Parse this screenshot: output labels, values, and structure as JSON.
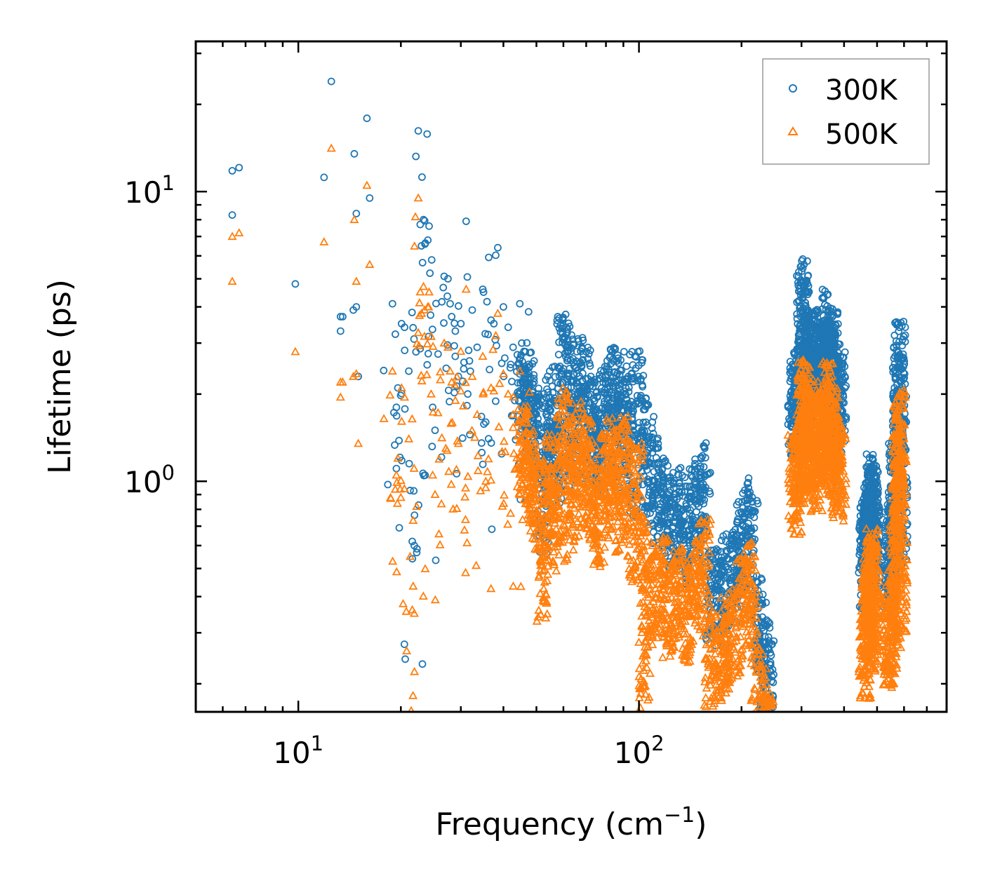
{
  "chart_data": {
    "type": "scatter",
    "title": "",
    "xlabel": "Frequency (cm",
    "xlabel_sup": "−1",
    "xlabel_close": ")",
    "ylabel": "Lifetime (ps)",
    "xscale": "log",
    "yscale": "log",
    "xlim": [
      5,
      800
    ],
    "ylim": [
      0.16,
      33
    ],
    "x_ticks": [
      {
        "value": 10,
        "base": "10",
        "exp": "1"
      },
      {
        "value": 100,
        "base": "10",
        "exp": "2"
      }
    ],
    "y_ticks": [
      {
        "value": 1,
        "base": "10",
        "exp": "0"
      },
      {
        "value": 10,
        "base": "10",
        "exp": "1"
      }
    ],
    "legend_position": "top-right",
    "colors": {
      "s300": "#1f77b4",
      "s500": "#ff7f0e",
      "axis": "#000000",
      "legend_border": "#999999"
    },
    "series": [
      {
        "name": "300K",
        "marker": "circle",
        "color": "#1f77b4",
        "points": [
          [
            6.4,
            11.8
          ],
          [
            6.7,
            12.1
          ],
          [
            6.4,
            8.3
          ],
          [
            9.8,
            4.8
          ],
          [
            11.9,
            11.2
          ],
          [
            12.5,
            24.0
          ],
          [
            13.3,
            3.7
          ],
          [
            13.5,
            3.7
          ],
          [
            13.3,
            3.3
          ],
          [
            14.5,
            3.9
          ],
          [
            14.8,
            4.0
          ],
          [
            14.6,
            13.5
          ],
          [
            14.8,
            8.4
          ],
          [
            15.0,
            2.3
          ],
          [
            15.9,
            17.9
          ],
          [
            16.2,
            9.5
          ],
          [
            18.9,
            4.1
          ],
          [
            19.4,
            1.8
          ],
          [
            19.6,
            2.1
          ],
          [
            20.1,
            3.5
          ],
          [
            20.5,
            3.4
          ],
          [
            21.1,
            2.4
          ],
          [
            21.3,
            0.93
          ],
          [
            21.6,
            0.62
          ],
          [
            21.9,
            0.6
          ],
          [
            22.5,
            16.2
          ],
          [
            22.8,
            7.7
          ],
          [
            23.0,
            6.5
          ],
          [
            23.3,
            8.0
          ],
          [
            24.0,
            6.8
          ],
          [
            24.2,
            7.6
          ],
          [
            24.8,
            1.8
          ],
          [
            25.2,
            1.5
          ],
          [
            26.8,
            5.1
          ],
          [
            27.5,
            5.0
          ],
          [
            27.9,
            4.1
          ],
          [
            28.2,
            3.7
          ],
          [
            28.9,
            3.3
          ],
          [
            29.5,
            2.3
          ],
          [
            30.0,
            3.5
          ],
          [
            31.1,
            7.9
          ],
          [
            32.4,
            3.9
          ],
          [
            33.5,
            2.9
          ],
          [
            34.8,
            4.6
          ],
          [
            35.5,
            1.6
          ],
          [
            36.8,
            3.6
          ],
          [
            37.5,
            3.5
          ],
          [
            38.5,
            6.4
          ],
          [
            40.0,
            4.0
          ],
          [
            41.3,
            3.4
          ],
          [
            42.7,
            2.9
          ],
          [
            43.2,
            1.9
          ],
          [
            44.7,
            4.1
          ],
          [
            45.3,
            3.0
          ],
          [
            46.4,
            2.8
          ],
          [
            47.8,
            2.5
          ],
          [
            49.2,
            2.2
          ],
          [
            50.7,
            2.0
          ],
          [
            52.0,
            1.1
          ],
          [
            53.4,
            1.7
          ],
          [
            54.7,
            2.4
          ],
          [
            56.0,
            1.9
          ],
          [
            58.0,
            1.6
          ],
          [
            59.8,
            3.6
          ],
          [
            61.2,
            3.4
          ],
          [
            62.8,
            1.8
          ],
          [
            64.5,
            2.5
          ],
          [
            66.2,
            3.1
          ],
          [
            68.1,
            2.0
          ],
          [
            70.0,
            2.8
          ],
          [
            72.3,
            2.2
          ],
          [
            74.1,
            1.9
          ],
          [
            76.4,
            1.7
          ],
          [
            78.9,
            2.4
          ],
          [
            81.0,
            2.1
          ],
          [
            83.5,
            2.8
          ],
          [
            86.1,
            2.6
          ],
          [
            88.2,
            1.9
          ],
          [
            90.4,
            2.8
          ],
          [
            93.1,
            2.3
          ],
          [
            96.0,
            1.5
          ],
          [
            99.3,
            2.8
          ],
          [
            102.4,
            1.9
          ],
          [
            106.0,
            1.4
          ],
          [
            109.5,
            1.6
          ],
          [
            114.0,
            1.1
          ],
          [
            118.0,
            1.2
          ],
          [
            122.0,
            1.0
          ],
          [
            126.5,
            0.95
          ],
          [
            131.0,
            1.1
          ],
          [
            136.0,
            0.92
          ],
          [
            141.0,
            0.88
          ],
          [
            146.0,
            1.15
          ],
          [
            151.0,
            1.05
          ],
          [
            156.0,
            1.3
          ],
          [
            162.0,
            0.55
          ],
          [
            168.0,
            0.57
          ],
          [
            174.0,
            0.53
          ],
          [
            180.0,
            0.62
          ],
          [
            187.0,
            0.65
          ],
          [
            194.0,
            0.72
          ],
          [
            201.0,
            0.85
          ],
          [
            208.0,
            0.98
          ],
          [
            215.0,
            0.88
          ],
          [
            222.0,
            0.45
          ],
          [
            228.0,
            0.38
          ],
          [
            234.0,
            0.32
          ],
          [
            240.0,
            0.29
          ],
          [
            285.0,
            2.5
          ],
          [
            290.0,
            2.3
          ],
          [
            296.0,
            2.8
          ],
          [
            302.0,
            4.9
          ],
          [
            305.0,
            5.6
          ],
          [
            308.0,
            3.9
          ],
          [
            314.0,
            3.0
          ],
          [
            320.0,
            3.3
          ],
          [
            326.0,
            3.8
          ],
          [
            332.0,
            2.7
          ],
          [
            338.0,
            3.4
          ],
          [
            345.0,
            3.5
          ],
          [
            351.0,
            3.6
          ],
          [
            357.0,
            4.4
          ],
          [
            363.0,
            3.2
          ],
          [
            370.0,
            3.7
          ],
          [
            376.0,
            2.9
          ],
          [
            383.0,
            2.5
          ],
          [
            390.0,
            2.7
          ],
          [
            460.0,
            0.72
          ],
          [
            464.0,
            0.85
          ],
          [
            469.0,
            0.93
          ],
          [
            474.0,
            1.05
          ],
          [
            479.0,
            1.1
          ],
          [
            484.0,
            1.2
          ],
          [
            489.0,
            0.9
          ],
          [
            494.0,
            0.78
          ],
          [
            540.0,
            0.72
          ],
          [
            548.0,
            0.79
          ],
          [
            555.0,
            0.82
          ],
          [
            562.0,
            1.3
          ],
          [
            568.0,
            0.95
          ],
          [
            574.0,
            1.85
          ],
          [
            578.0,
            2.6
          ],
          [
            582.0,
            3.4
          ],
          [
            586.0,
            2.2
          ],
          [
            590.0,
            1.05
          ]
        ]
      },
      {
        "name": "500K",
        "marker": "triangle",
        "color": "#ff7f0e",
        "points": [
          [
            6.4,
            7.0
          ],
          [
            6.7,
            7.2
          ],
          [
            6.4,
            4.9
          ],
          [
            9.8,
            2.8
          ],
          [
            11.9,
            6.7
          ],
          [
            12.5,
            14.1
          ],
          [
            13.3,
            2.2
          ],
          [
            13.5,
            2.2
          ],
          [
            13.3,
            1.95
          ],
          [
            14.5,
            2.3
          ],
          [
            14.8,
            2.35
          ],
          [
            14.6,
            8.0
          ],
          [
            14.8,
            4.9
          ],
          [
            15.0,
            1.35
          ],
          [
            15.9,
            10.5
          ],
          [
            16.2,
            5.6
          ],
          [
            18.9,
            2.4
          ],
          [
            19.4,
            1.05
          ],
          [
            19.6,
            1.2
          ],
          [
            20.1,
            2.1
          ],
          [
            20.5,
            1.95
          ],
          [
            21.1,
            1.4
          ],
          [
            21.3,
            0.55
          ],
          [
            21.6,
            0.36
          ],
          [
            21.9,
            0.35
          ],
          [
            22.5,
            9.5
          ],
          [
            22.8,
            4.5
          ],
          [
            23.0,
            3.8
          ],
          [
            23.3,
            4.7
          ],
          [
            24.0,
            4.0
          ],
          [
            24.2,
            4.5
          ],
          [
            24.8,
            1.05
          ],
          [
            25.2,
            0.9
          ],
          [
            26.8,
            3.0
          ],
          [
            27.5,
            2.9
          ],
          [
            27.9,
            2.4
          ],
          [
            28.2,
            2.2
          ],
          [
            28.9,
            1.9
          ],
          [
            29.5,
            1.35
          ],
          [
            30.0,
            2.05
          ],
          [
            31.1,
            4.6
          ],
          [
            32.4,
            2.3
          ],
          [
            33.5,
            1.7
          ],
          [
            34.8,
            2.7
          ],
          [
            35.5,
            0.95
          ],
          [
            36.8,
            2.1
          ],
          [
            37.5,
            2.05
          ],
          [
            38.5,
            3.8
          ],
          [
            40.0,
            2.35
          ],
          [
            41.3,
            2.0
          ],
          [
            42.7,
            1.7
          ],
          [
            43.2,
            1.1
          ],
          [
            44.7,
            2.4
          ],
          [
            45.3,
            1.75
          ],
          [
            46.4,
            1.65
          ],
          [
            47.8,
            1.45
          ],
          [
            49.2,
            1.3
          ],
          [
            50.7,
            1.15
          ],
          [
            52.0,
            0.65
          ],
          [
            53.4,
            1.0
          ],
          [
            54.7,
            1.4
          ],
          [
            56.0,
            1.1
          ],
          [
            58.0,
            0.95
          ],
          [
            59.8,
            2.1
          ],
          [
            61.2,
            2.0
          ],
          [
            62.8,
            1.05
          ],
          [
            64.5,
            1.45
          ],
          [
            66.2,
            1.8
          ],
          [
            68.1,
            1.2
          ],
          [
            70.0,
            1.65
          ],
          [
            72.3,
            1.3
          ],
          [
            74.1,
            1.1
          ],
          [
            76.4,
            1.0
          ],
          [
            78.9,
            1.4
          ],
          [
            81.0,
            1.25
          ],
          [
            83.5,
            1.65
          ],
          [
            86.1,
            1.5
          ],
          [
            88.2,
            1.1
          ],
          [
            90.4,
            1.6
          ],
          [
            93.1,
            1.35
          ],
          [
            96.0,
            0.88
          ],
          [
            99.3,
            1.3
          ],
          [
            102.4,
            0.75
          ],
          [
            104.0,
            0.28
          ],
          [
            106.0,
            0.52
          ],
          [
            109.5,
            0.6
          ],
          [
            114.0,
            0.55
          ],
          [
            118.0,
            0.62
          ],
          [
            122.0,
            0.48
          ],
          [
            126.5,
            0.53
          ],
          [
            131.0,
            0.57
          ],
          [
            136.0,
            0.47
          ],
          [
            141.0,
            0.5
          ],
          [
            146.0,
            0.62
          ],
          [
            151.0,
            0.58
          ],
          [
            156.0,
            0.72
          ],
          [
            162.0,
            0.33
          ],
          [
            168.0,
            0.34
          ],
          [
            174.0,
            0.3
          ],
          [
            180.0,
            0.38
          ],
          [
            187.0,
            0.4
          ],
          [
            194.0,
            0.43
          ],
          [
            201.0,
            0.52
          ],
          [
            208.0,
            0.6
          ],
          [
            215.0,
            0.53
          ],
          [
            222.0,
            0.26
          ],
          [
            228.0,
            0.22
          ],
          [
            234.0,
            0.18
          ],
          [
            240.0,
            0.17
          ],
          [
            285.0,
            1.4
          ],
          [
            290.0,
            1.3
          ],
          [
            296.0,
            1.6
          ],
          [
            302.0,
            2.3
          ],
          [
            305.0,
            2.6
          ],
          [
            308.0,
            2.0
          ],
          [
            314.0,
            1.7
          ],
          [
            320.0,
            1.85
          ],
          [
            326.0,
            2.15
          ],
          [
            332.0,
            1.55
          ],
          [
            338.0,
            1.9
          ],
          [
            345.0,
            1.95
          ],
          [
            351.0,
            2.0
          ],
          [
            357.0,
            2.5
          ],
          [
            363.0,
            1.8
          ],
          [
            370.0,
            2.05
          ],
          [
            376.0,
            1.6
          ],
          [
            383.0,
            1.45
          ],
          [
            390.0,
            1.55
          ],
          [
            460.0,
            0.35
          ],
          [
            464.0,
            0.42
          ],
          [
            469.0,
            0.48
          ],
          [
            474.0,
            0.55
          ],
          [
            479.0,
            0.6
          ],
          [
            484.0,
            0.66
          ],
          [
            489.0,
            0.5
          ],
          [
            494.0,
            0.43
          ],
          [
            540.0,
            0.38
          ],
          [
            548.0,
            0.42
          ],
          [
            555.0,
            0.45
          ],
          [
            562.0,
            0.72
          ],
          [
            568.0,
            0.52
          ],
          [
            574.0,
            1.0
          ],
          [
            578.0,
            1.5
          ],
          [
            582.0,
            2.0
          ],
          [
            586.0,
            1.25
          ],
          [
            590.0,
            0.6
          ]
        ]
      }
    ]
  }
}
